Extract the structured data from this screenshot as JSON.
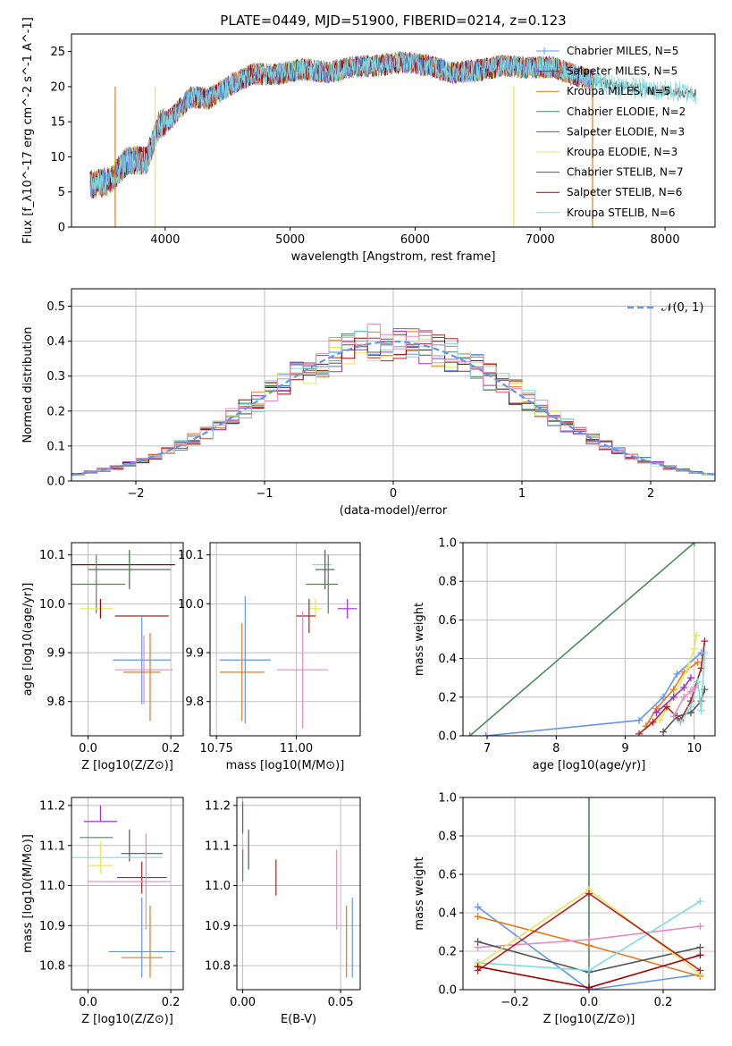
{
  "figure_title": "PLATE=0449, MJD=51900, FIBERID=0214, z=0.123",
  "colors": [
    "#6495ed",
    "#b22222",
    "#e07b1f",
    "#4b8b5a",
    "#9a32cd",
    "#e6e65c",
    "#555555",
    "#a00000",
    "#7fdbdb"
  ],
  "extra_colors": {
    "pink": "#e88ac0",
    "gaussian": "#6495ed"
  },
  "chart_data": [
    {
      "id": "spectrum",
      "type": "line",
      "title": "PLATE=0449, MJD=51900, FIBERID=0214, z=0.123",
      "xlabel": "wavelength [Angstrom, rest frame]",
      "ylabel": "Flux [f_λ10^-17 erg cm^-2 s^-1 A^-1]",
      "xlim": [
        3250,
        8400
      ],
      "ylim": [
        0,
        27.5
      ],
      "xticks": [
        "4000",
        "5000",
        "6000",
        "7000",
        "8000"
      ],
      "yticks": [
        "0",
        "5",
        "10",
        "15",
        "20",
        "25"
      ],
      "legend_position": "right",
      "legend": [
        "Chabrier MILES, N_SSP=5",
        "Salpeter MILES, N_SSP=5",
        "Kroupa MILES, N_SSP=5",
        "Chabrier ELODIE, N_SSP=2",
        "Salpeter ELODIE, N_SSP=3",
        "Kroupa ELODIE, N_SSP=3",
        "Chabrier STELIB, N_SSP=7",
        "Salpeter STELIB, N_SSP=6",
        "Kroupa STELIB, N_SSP=6"
      ],
      "continuum": {
        "x": [
          3400,
          3550,
          3700,
          3850,
          3950,
          4050,
          4200,
          4350,
          4500,
          4700,
          4900,
          5100,
          5300,
          5500,
          5700,
          5900,
          6100,
          6300,
          6500,
          6700,
          6900,
          7100,
          7300,
          7500,
          7700,
          7900,
          8100,
          8250
        ],
        "y": [
          6.0,
          6.5,
          9.5,
          9.5,
          14.5,
          15.5,
          18.5,
          18.3,
          20.0,
          21.8,
          21.8,
          22.5,
          22.0,
          22.8,
          23.0,
          23.5,
          23.0,
          22.0,
          22.3,
          23.0,
          22.7,
          22.8,
          21.5,
          20.5,
          20.0,
          19.5,
          19.3,
          19.0
        ]
      },
      "dropouts": [
        3600,
        3920,
        6790,
        7420
      ]
    },
    {
      "id": "residuals",
      "type": "histogram",
      "xlabel": "(data-model)/error",
      "ylabel": "Normed distribution",
      "xlim": [
        -2.5,
        2.5
      ],
      "ylim": [
        0,
        0.55
      ],
      "xticks": [
        "−2",
        "−1",
        "0",
        "1",
        "2"
      ],
      "yticks": [
        "0.0",
        "0.1",
        "0.2",
        "0.3",
        "0.4",
        "0.5"
      ],
      "legend": [
        "𝒩(0, 1)"
      ],
      "legend_position": "top-right",
      "bin_width": 0.1
    },
    {
      "id": "age_vs_Z",
      "type": "scatter",
      "xlabel": "Z [log10(Z/Z⊙)]",
      "ylabel": "age  [log10(age/yr)]",
      "xlim": [
        -0.04,
        0.23
      ],
      "ylim": [
        9.73,
        10.125
      ],
      "xticks": [
        "0.0",
        "0.2"
      ],
      "yticks": [
        "9.8",
        "9.9",
        "10.0",
        "10.1"
      ],
      "points": [
        {
          "x": 0.08,
          "y": 10.08,
          "xerr": 0.13,
          "yerr": 0.0,
          "c": 7
        },
        {
          "x": 0.1,
          "y": 10.07,
          "xerr": 0.1,
          "yerr": 0.04,
          "c": 6
        },
        {
          "x": 0.1,
          "y": 10.08,
          "xerr": 0.0,
          "yerr": 0.03,
          "c": 3
        },
        {
          "x": 0.02,
          "y": 10.04,
          "xerr": 0.07,
          "yerr": 0.06,
          "c": 3
        },
        {
          "x": 0.02,
          "y": 9.99,
          "xerr": 0.04,
          "yerr": 0.0,
          "c": 5
        },
        {
          "x": 0.03,
          "y": 9.99,
          "xerr": 0.0,
          "yerr": 0.02,
          "c": 7
        },
        {
          "x": 0.13,
          "y": 9.975,
          "xerr": 0.065,
          "yerr": 0.0,
          "c": 1
        },
        {
          "x": 0.13,
          "y": 9.885,
          "xerr": 0.07,
          "yerr": 0.09,
          "c": 0
        },
        {
          "x": 0.135,
          "y": 9.865,
          "xerr": 0.07,
          "yerr": 0.07,
          "c": 9
        },
        {
          "x": 0.13,
          "y": 9.86,
          "xerr": 0.045,
          "yerr": 0.0,
          "c": 2
        },
        {
          "x": 0.15,
          "y": 9.85,
          "xerr": 0.0,
          "yerr": 0.09,
          "c": 2
        }
      ]
    },
    {
      "id": "age_vs_mass",
      "type": "scatter",
      "xlabel": "mass [log10(M/M⊙)]",
      "ylabel": "",
      "xlim": [
        10.73,
        11.2
      ],
      "ylim": [
        9.73,
        10.125
      ],
      "xticks": [
        "10.75",
        "11.00"
      ],
      "yticks": [
        "9.8",
        "9.9",
        "10.0",
        "10.1"
      ],
      "points": [
        {
          "x": 11.08,
          "y": 10.08,
          "xerr": 0.03,
          "yerr": 0.0,
          "c": 8
        },
        {
          "x": 11.09,
          "y": 10.07,
          "xerr": 0.03,
          "yerr": 0.04,
          "c": 6
        },
        {
          "x": 11.1,
          "y": 10.04,
          "xerr": 0.0,
          "yerr": 0.06,
          "c": 3
        },
        {
          "x": 11.08,
          "y": 10.04,
          "xerr": 0.05,
          "yerr": 0.0,
          "c": 3
        },
        {
          "x": 11.16,
          "y": 9.99,
          "xerr": 0.03,
          "yerr": 0.02,
          "c": 4
        },
        {
          "x": 11.06,
          "y": 9.99,
          "xerr": 0.02,
          "yerr": 0.02,
          "c": 5
        },
        {
          "x": 11.03,
          "y": 9.975,
          "xerr": 0.03,
          "yerr": 0.0,
          "c": 1
        },
        {
          "x": 11.04,
          "y": 9.975,
          "xerr": 0.0,
          "yerr": 0.035,
          "c": 1
        },
        {
          "x": 10.84,
          "y": 9.885,
          "xerr": 0.08,
          "yerr": 0.0,
          "c": 0
        },
        {
          "x": 10.84,
          "y": 9.885,
          "xerr": 0.0,
          "yerr": 0.13,
          "c": 0
        },
        {
          "x": 11.02,
          "y": 9.865,
          "xerr": 0.08,
          "yerr": 0.0,
          "c": 9
        },
        {
          "x": 11.02,
          "y": 9.865,
          "xerr": 0.0,
          "yerr": 0.12,
          "c": 9
        },
        {
          "x": 10.83,
          "y": 9.86,
          "xerr": 0.07,
          "yerr": 0.0,
          "c": 2
        },
        {
          "x": 10.83,
          "y": 9.86,
          "xerr": 0.0,
          "yerr": 0.1,
          "c": 2
        }
      ]
    },
    {
      "id": "weight_vs_age",
      "type": "line",
      "xlabel": "age  [log10(age/yr)]",
      "ylabel": "mass weight",
      "xlim": [
        6.65,
        10.3
      ],
      "ylim": [
        0,
        1.0
      ],
      "xticks": [
        "7",
        "8",
        "9",
        "10"
      ],
      "yticks": [
        "0.0",
        "0.2",
        "0.4",
        "0.6",
        "0.8",
        "1.0"
      ],
      "series": [
        {
          "c": 3,
          "x": [
            6.75,
            10.0
          ],
          "y": [
            0.0,
            1.0
          ]
        },
        {
          "c": 0,
          "x": [
            6.98,
            9.2,
            9.55,
            9.75,
            10.1
          ],
          "y": [
            0.0,
            0.08,
            0.2,
            0.32,
            0.43
          ]
        },
        {
          "c": 2,
          "x": [
            9.3,
            9.45,
            9.7,
            9.85,
            10.05
          ],
          "y": [
            0.05,
            0.14,
            0.24,
            0.33,
            0.38
          ]
        },
        {
          "c": 5,
          "x": [
            9.5,
            9.7,
            9.9,
            10.0,
            10.03
          ],
          "y": [
            0.08,
            0.2,
            0.35,
            0.45,
            0.52
          ]
        },
        {
          "c": 4,
          "x": [
            9.45,
            9.7,
            9.85,
            9.95
          ],
          "y": [
            0.12,
            0.2,
            0.25,
            0.3
          ]
        },
        {
          "c": 1,
          "x": [
            9.2,
            9.4,
            9.6,
            9.8,
            9.95,
            10.1,
            10.15
          ],
          "y": [
            0.01,
            0.07,
            0.15,
            0.08,
            0.18,
            0.35,
            0.49
          ]
        },
        {
          "c": 6,
          "x": [
            9.55,
            9.75,
            9.95,
            10.1,
            10.15
          ],
          "y": [
            0.02,
            0.1,
            0.12,
            0.18,
            0.24
          ]
        },
        {
          "c": 8,
          "x": [
            9.8,
            9.95,
            10.05,
            10.1,
            10.15
          ],
          "y": [
            0.07,
            0.15,
            0.28,
            0.13,
            0.43
          ]
        },
        {
          "c": 9,
          "x": [
            9.7,
            9.85,
            9.95,
            10.0
          ],
          "y": [
            0.1,
            0.2,
            0.23,
            0.25
          ]
        }
      ]
    },
    {
      "id": "mass_vs_Z",
      "type": "scatter",
      "xlabel": "Z [log10(Z/Z⊙)]",
      "ylabel": "mass [log10(M/M⊙)]",
      "xlim": [
        -0.04,
        0.23
      ],
      "ylim": [
        10.74,
        11.22
      ],
      "xticks": [
        "0.0",
        "0.2"
      ],
      "yticks": [
        "10.8",
        "10.9",
        "11.0",
        "11.1",
        "11.2"
      ],
      "points": [
        {
          "x": 0.03,
          "y": 11.18,
          "xerr": 0.0,
          "yerr": 0.02,
          "c": 4
        },
        {
          "x": 0.03,
          "y": 11.16,
          "xerr": 0.04,
          "yerr": 0.0,
          "c": 4
        },
        {
          "x": 0.02,
          "y": 11.12,
          "xerr": 0.04,
          "yerr": 0.0,
          "c": 3
        },
        {
          "x": 0.1,
          "y": 11.1,
          "xerr": 0.0,
          "yerr": 0.04,
          "c": 6
        },
        {
          "x": 0.13,
          "y": 11.08,
          "xerr": 0.05,
          "yerr": 0.0,
          "c": 6
        },
        {
          "x": 0.07,
          "y": 11.07,
          "xerr": 0.11,
          "yerr": 0.0,
          "c": 8
        },
        {
          "x": 0.03,
          "y": 11.07,
          "xerr": 0.0,
          "yerr": 0.04,
          "c": 5
        },
        {
          "x": 0.03,
          "y": 11.05,
          "xerr": 0.03,
          "yerr": 0.0,
          "c": 5
        },
        {
          "x": 0.13,
          "y": 11.02,
          "xerr": 0.06,
          "yerr": 0.0,
          "c": 1
        },
        {
          "x": 0.13,
          "y": 11.02,
          "xerr": 0.0,
          "yerr": 0.04,
          "c": 1
        },
        {
          "x": 0.1,
          "y": 11.01,
          "xerr": 0.1,
          "yerr": 0.0,
          "c": 9
        },
        {
          "x": 0.14,
          "y": 11.01,
          "xerr": 0.0,
          "yerr": 0.12,
          "c": 9
        },
        {
          "x": 0.13,
          "y": 10.835,
          "xerr": 0.08,
          "yerr": 0.0,
          "c": 0
        },
        {
          "x": 0.13,
          "y": 10.87,
          "xerr": 0.0,
          "yerr": 0.1,
          "c": 0
        },
        {
          "x": 0.13,
          "y": 10.82,
          "xerr": 0.05,
          "yerr": 0.0,
          "c": 2
        },
        {
          "x": 0.15,
          "y": 10.86,
          "xerr": 0.0,
          "yerr": 0.09,
          "c": 2
        }
      ]
    },
    {
      "id": "mass_vs_ebv",
      "type": "scatter",
      "xlabel": "E(B-V)",
      "ylabel": "",
      "xlim": [
        -0.003,
        0.06
      ],
      "ylim": [
        10.74,
        11.22
      ],
      "xticks": [
        "0.00",
        "0.05"
      ],
      "yticks": [
        "10.8",
        "10.9",
        "11.0",
        "11.1",
        "11.2"
      ],
      "points": [
        {
          "x": 0.0,
          "y": 11.17,
          "xerr": 0.0,
          "yerr": 0.04,
          "c": 4
        },
        {
          "x": 0.003,
          "y": 11.09,
          "xerr": 0.0,
          "yerr": 0.05,
          "c": 6
        },
        {
          "x": 0.0,
          "y": 11.06,
          "xerr": 0.0,
          "yerr": 0.05,
          "c": 8
        },
        {
          "x": 0.0,
          "y": 11.05,
          "xerr": 0.0,
          "yerr": 0.04,
          "c": 3
        },
        {
          "x": 0.017,
          "y": 11.02,
          "xerr": 0.0,
          "yerr": 0.045,
          "c": 1
        },
        {
          "x": 0.048,
          "y": 10.99,
          "xerr": 0.0,
          "yerr": 0.1,
          "c": 9
        },
        {
          "x": 0.053,
          "y": 10.86,
          "xerr": 0.0,
          "yerr": 0.09,
          "c": 2
        },
        {
          "x": 0.056,
          "y": 10.87,
          "xerr": 0.0,
          "yerr": 0.1,
          "c": 0
        }
      ]
    },
    {
      "id": "weight_vs_Z",
      "type": "line",
      "xlabel": "Z [log10(Z/Z⊙)]",
      "ylabel": "mass weight",
      "xlim": [
        -0.34,
        0.34
      ],
      "ylim": [
        0,
        1.0
      ],
      "xticks": [
        "−0.2",
        "0.0",
        "0.2"
      ],
      "yticks": [
        "0.0",
        "0.2",
        "0.4",
        "0.6",
        "0.8",
        "1.0"
      ],
      "series": [
        {
          "c": 3,
          "x": [
            0.0,
            0.0
          ],
          "y": [
            0.0,
            1.0
          ]
        },
        {
          "c": 0,
          "x": [
            -0.3,
            0.0,
            0.3
          ],
          "y": [
            0.43,
            0.0,
            0.08
          ]
        },
        {
          "c": 2,
          "x": [
            -0.3,
            0.0,
            0.3
          ],
          "y": [
            0.38,
            0.23,
            0.07
          ]
        },
        {
          "c": 9,
          "x": [
            -0.3,
            0.0,
            0.3
          ],
          "y": [
            0.22,
            0.26,
            0.33
          ]
        },
        {
          "c": 6,
          "x": [
            -0.3,
            0.0,
            0.3
          ],
          "y": [
            0.25,
            0.09,
            0.22
          ]
        },
        {
          "c": 8,
          "x": [
            -0.3,
            0.0,
            0.3
          ],
          "y": [
            0.14,
            0.1,
            0.46
          ]
        },
        {
          "c": 5,
          "x": [
            -0.3,
            0.0,
            0.3
          ],
          "y": [
            0.13,
            0.52,
            0.08
          ]
        },
        {
          "c": 1,
          "x": [
            -0.3,
            0.0,
            0.3
          ],
          "y": [
            0.1,
            0.5,
            0.1
          ]
        },
        {
          "c": 7,
          "x": [
            -0.3,
            0.0,
            0.3
          ],
          "y": [
            0.12,
            0.01,
            0.18
          ]
        }
      ]
    }
  ]
}
